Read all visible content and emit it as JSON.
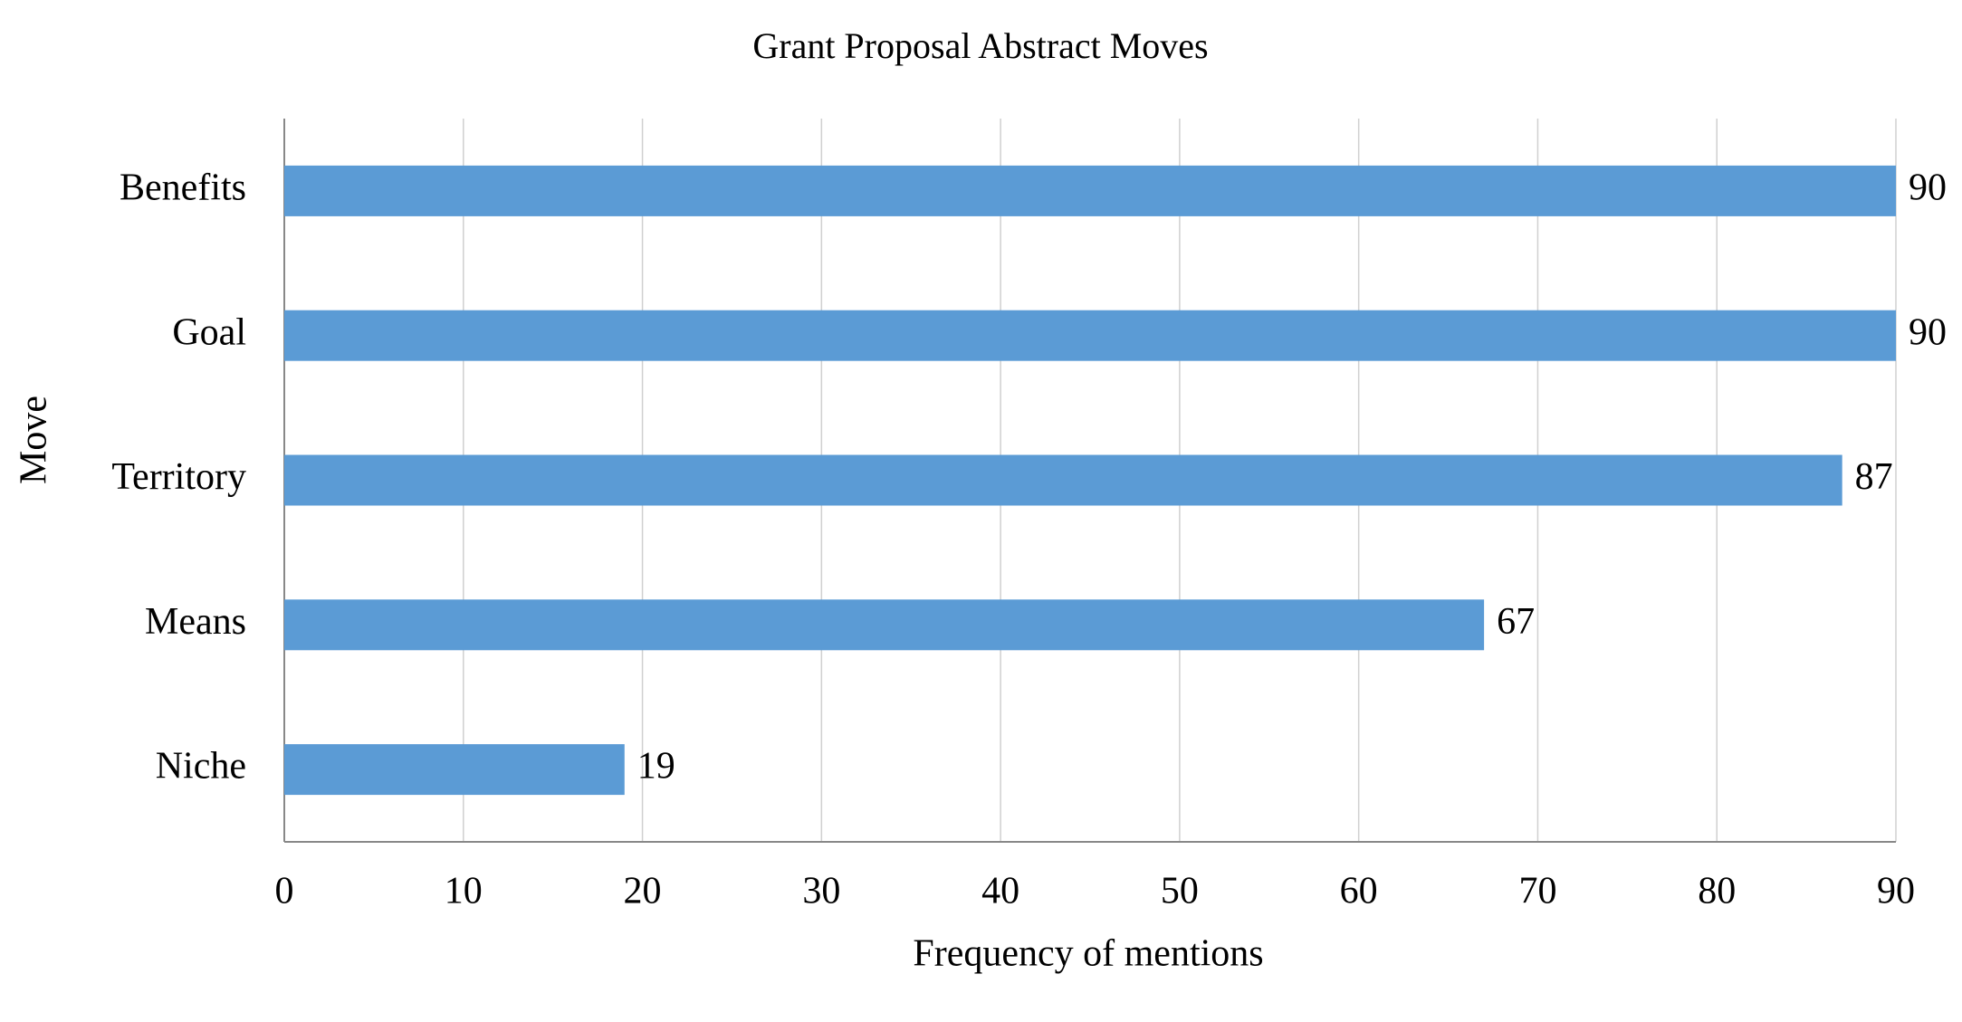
{
  "chart_data": {
    "type": "hbar",
    "title": "Grant Proposal Abstract Moves",
    "x_label": "Frequency of mentions",
    "y_label": "Move",
    "categories": [
      "Benefits",
      "Goal",
      "Territory",
      "Means",
      "Niche"
    ],
    "values": [
      90,
      90,
      87,
      67,
      19
    ],
    "color": "#5b9bd5",
    "xlim": [
      0,
      90
    ],
    "xticks": [
      0,
      10,
      20,
      30,
      40,
      50,
      60,
      70,
      80,
      90
    ],
    "grid": true
  }
}
